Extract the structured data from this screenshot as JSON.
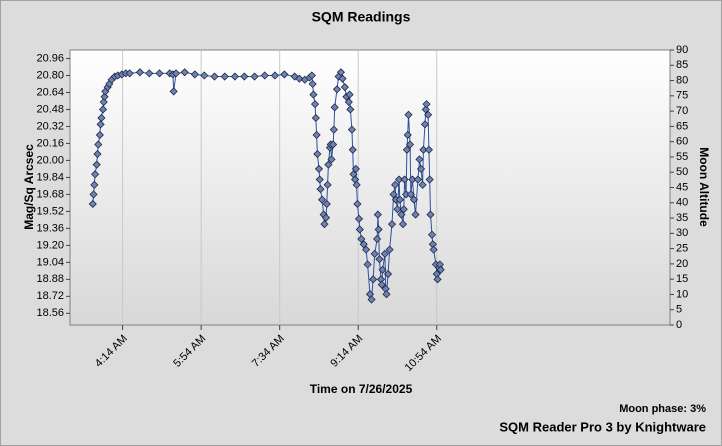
{
  "chart_data": {
    "type": "scatter-line",
    "title": "SQM Readings",
    "xlabel": "Time on 7/26/2025",
    "ylabel": "Mag/Sq Arcsec",
    "y2label": "Moon Altitude",
    "moon_phase": "Moon phase: 3%",
    "footer": "SQM Reader Pro 3 by Knightware",
    "xlim": [
      187,
      951
    ],
    "xticks": [
      {
        "value": 254,
        "label": "4:14 AM"
      },
      {
        "value": 354,
        "label": "5:54 AM"
      },
      {
        "value": 454,
        "label": "7:34 AM"
      },
      {
        "value": 554,
        "label": "9:14 AM"
      },
      {
        "value": 654,
        "label": "10:54 AM"
      }
    ],
    "ylim": [
      18.45,
      21.04
    ],
    "yticks": [
      {
        "value": 18.56,
        "label": "18.56"
      },
      {
        "value": 18.72,
        "label": "18.72"
      },
      {
        "value": 18.88,
        "label": "18.88"
      },
      {
        "value": 19.04,
        "label": "19.04"
      },
      {
        "value": 19.2,
        "label": "19.20"
      },
      {
        "value": 19.36,
        "label": "19.36"
      },
      {
        "value": 19.52,
        "label": "19.52"
      },
      {
        "value": 19.68,
        "label": "19.68"
      },
      {
        "value": 19.84,
        "label": "19.84"
      },
      {
        "value": 20.0,
        "label": "20.00"
      },
      {
        "value": 20.16,
        "label": "20.16"
      },
      {
        "value": 20.32,
        "label": "20.32"
      },
      {
        "value": 20.48,
        "label": "20.48"
      },
      {
        "value": 20.64,
        "label": "20.64"
      },
      {
        "value": 20.8,
        "label": "20.80"
      },
      {
        "value": 20.96,
        "label": "20.96"
      }
    ],
    "y2lim": [
      0,
      90
    ],
    "y2ticks": [
      0,
      5,
      10,
      15,
      20,
      25,
      30,
      35,
      40,
      45,
      50,
      55,
      60,
      65,
      70,
      75,
      80,
      85,
      90
    ],
    "color": "#2f4f9f",
    "marker_color": "#7083b0",
    "x": [
      216,
      217,
      218,
      219,
      221,
      222,
      223,
      225,
      226,
      227,
      229,
      230,
      231,
      232,
      235,
      237,
      240,
      244,
      248,
      253,
      258,
      263,
      276,
      288,
      301,
      314,
      318,
      319,
      322,
      333,
      346,
      358,
      371,
      384,
      397,
      409,
      422,
      435,
      448,
      460,
      473,
      479,
      486,
      492,
      495,
      496,
      497,
      499,
      500,
      501,
      502,
      504,
      505,
      506,
      508,
      510,
      511,
      513,
      514,
      515,
      516,
      518,
      519,
      520,
      522,
      523,
      524,
      527,
      529,
      532,
      534,
      537,
      539,
      542,
      543,
      544,
      546,
      547,
      548,
      550,
      551,
      552,
      553,
      555,
      556,
      558,
      561,
      564,
      566,
      569,
      571,
      573,
      575,
      578,
      579,
      580,
      581,
      583,
      584,
      585,
      588,
      589,
      590,
      592,
      594,
      597,
      599,
      601,
      602,
      604,
      606,
      607,
      609,
      611,
      612,
      613,
      615,
      616,
      617,
      618,
      620,
      621,
      623,
      625,
      627,
      630,
      632,
      634,
      636,
      637,
      639,
      640,
      641,
      643,
      644,
      645,
      646,
      648,
      649,
      650,
      653,
      654,
      655,
      657,
      658,
      659
    ],
    "values": [
      19.59,
      19.68,
      19.77,
      19.87,
      19.96,
      20.06,
      20.15,
      20.24,
      20.34,
      20.4,
      20.48,
      20.55,
      20.6,
      20.65,
      20.69,
      20.72,
      20.76,
      20.79,
      20.8,
      20.81,
      20.82,
      20.82,
      20.83,
      20.82,
      20.82,
      20.82,
      20.81,
      20.65,
      20.82,
      20.83,
      20.81,
      20.8,
      20.79,
      20.79,
      20.79,
      20.79,
      20.79,
      20.8,
      20.8,
      20.81,
      20.79,
      20.77,
      20.76,
      20.78,
      20.8,
      20.72,
      20.62,
      20.53,
      20.4,
      20.24,
      20.06,
      19.92,
      19.82,
      19.73,
      19.63,
      19.49,
      19.4,
      19.46,
      19.59,
      19.77,
      19.96,
      20.12,
      20.15,
      20.01,
      20.15,
      20.29,
      20.5,
      20.67,
      20.79,
      20.83,
      20.77,
      20.69,
      20.6,
      20.55,
      20.62,
      20.48,
      20.29,
      20.1,
      19.87,
      19.82,
      19.92,
      19.77,
      19.59,
      19.45,
      19.35,
      19.26,
      19.21,
      19.16,
      19.02,
      18.74,
      18.69,
      18.88,
      19.12,
      19.26,
      19.49,
      19.35,
      19.07,
      18.88,
      18.83,
      18.97,
      19.12,
      18.79,
      18.74,
      18.93,
      19.16,
      19.4,
      19.68,
      19.77,
      19.63,
      19.54,
      19.82,
      19.63,
      19.49,
      19.4,
      19.54,
      19.82,
      19.68,
      20.1,
      20.24,
      20.43,
      20.15,
      19.68,
      19.82,
      19.63,
      19.49,
      19.82,
      20.01,
      19.92,
      19.77,
      20.1,
      20.34,
      20.48,
      20.53,
      20.43,
      20.1,
      19.82,
      19.49,
      19.3,
      19.21,
      19.16,
      19.02,
      18.93,
      18.88,
      18.99,
      19.02,
      18.97
    ]
  }
}
